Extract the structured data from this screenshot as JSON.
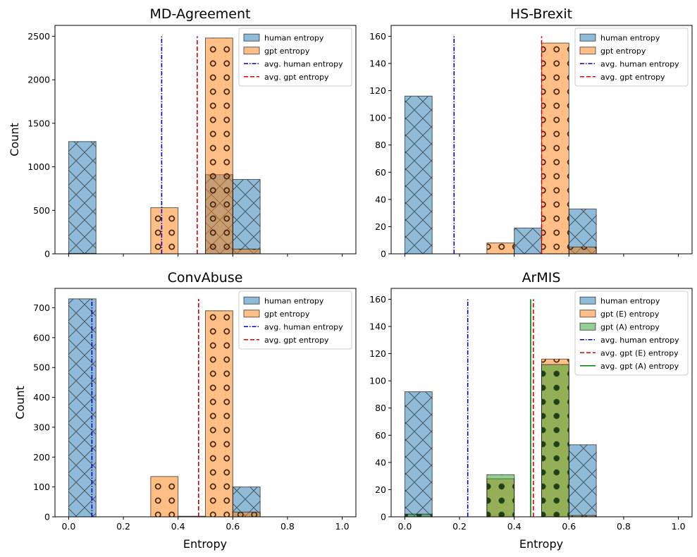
{
  "chart_data": [
    {
      "type": "bar",
      "title": "MD-Agreement",
      "xlabel": "",
      "ylabel": "Count",
      "xlim": [
        -0.05,
        1.05
      ],
      "ylim": [
        0,
        2625
      ],
      "x_ticks": [
        0.0,
        0.2,
        0.4,
        0.6,
        0.8,
        1.0
      ],
      "x_tick_labels": [
        "0.0",
        "0.2",
        "0.4",
        "0.6",
        "0.8",
        "1.0"
      ],
      "y_ticks": [
        0,
        500,
        1000,
        1500,
        2000,
        2500
      ],
      "y_tick_labels": [
        "0",
        "500",
        "1000",
        "1500",
        "2000",
        "2500"
      ],
      "legend_position": "top-right",
      "bin_edges": [
        0.0,
        0.1,
        0.2,
        0.3,
        0.4,
        0.5,
        0.6,
        0.7,
        0.8,
        0.9,
        1.0
      ],
      "series": [
        {
          "name": "human entropy",
          "kind": "hist",
          "color": "#1f77b4",
          "hatch": "x",
          "values": [
            1290,
            0,
            0,
            0,
            0,
            910,
            855,
            0,
            0,
            0
          ]
        },
        {
          "name": "gpt entropy",
          "kind": "hist",
          "color": "#ff7f0e",
          "hatch": "o",
          "values": [
            5,
            0,
            0,
            530,
            0,
            2480,
            55,
            0,
            0,
            0
          ]
        },
        {
          "name": "avg. human entropy",
          "kind": "vline",
          "color": "#0000cc",
          "dash": "dashdot",
          "x": 0.34,
          "height": 2500
        },
        {
          "name": "avg. gpt entropy",
          "kind": "vline",
          "color": "#dd0000",
          "dash": "dashed",
          "x": 0.47,
          "height": 2500
        }
      ]
    },
    {
      "type": "bar",
      "title": "HS-Brexit",
      "xlabel": "",
      "ylabel": "",
      "xlim": [
        -0.05,
        1.05
      ],
      "ylim": [
        0,
        168
      ],
      "x_ticks": [
        0.0,
        0.2,
        0.4,
        0.6,
        0.8,
        1.0
      ],
      "x_tick_labels": [
        "0.0",
        "0.2",
        "0.4",
        "0.6",
        "0.8",
        "1.0"
      ],
      "y_ticks": [
        0,
        20,
        40,
        60,
        80,
        100,
        120,
        140,
        160
      ],
      "y_tick_labels": [
        "0",
        "20",
        "40",
        "60",
        "80",
        "100",
        "120",
        "140",
        "160"
      ],
      "legend_position": "top-right",
      "bin_edges": [
        0.0,
        0.1,
        0.2,
        0.3,
        0.4,
        0.5,
        0.6,
        0.7,
        0.8,
        0.9,
        1.0
      ],
      "series": [
        {
          "name": "human entropy",
          "kind": "hist",
          "color": "#1f77b4",
          "hatch": "x",
          "values": [
            116,
            0,
            0,
            0,
            19,
            0,
            33,
            0,
            0,
            0
          ]
        },
        {
          "name": "gpt entropy",
          "kind": "hist",
          "color": "#ff7f0e",
          "hatch": "o",
          "values": [
            0,
            0,
            0,
            8,
            0,
            155,
            5,
            0,
            0,
            0
          ]
        },
        {
          "name": "avg. human entropy",
          "kind": "vline",
          "color": "#0000cc",
          "dash": "dashdot",
          "x": 0.18,
          "height": 160
        },
        {
          "name": "avg. gpt entropy",
          "kind": "vline",
          "color": "#dd0000",
          "dash": "dashed",
          "x": 0.5,
          "height": 160
        }
      ]
    },
    {
      "type": "bar",
      "title": "ConvAbuse",
      "xlabel": "Entropy",
      "ylabel": "Count",
      "xlim": [
        -0.05,
        1.05
      ],
      "ylim": [
        0,
        765
      ],
      "x_ticks": [
        0.0,
        0.2,
        0.4,
        0.6,
        0.8,
        1.0
      ],
      "x_tick_labels": [
        "0.0",
        "0.2",
        "0.4",
        "0.6",
        "0.8",
        "1.0"
      ],
      "y_ticks": [
        0,
        100,
        200,
        300,
        400,
        500,
        600,
        700
      ],
      "y_tick_labels": [
        "0",
        "100",
        "200",
        "300",
        "400",
        "500",
        "600",
        "700"
      ],
      "legend_position": "top-right",
      "bin_edges": [
        0.0,
        0.1,
        0.2,
        0.3,
        0.4,
        0.5,
        0.6,
        0.7,
        0.8,
        0.9,
        1.0
      ],
      "series": [
        {
          "name": "human entropy",
          "kind": "hist",
          "color": "#1f77b4",
          "hatch": "x",
          "values": [
            730,
            0,
            0,
            0,
            2,
            0,
            100,
            0,
            0,
            0
          ]
        },
        {
          "name": "gpt entropy",
          "kind": "hist",
          "color": "#ff7f0e",
          "hatch": "o",
          "values": [
            0,
            0,
            0,
            135,
            0,
            690,
            16,
            0,
            0,
            0
          ]
        },
        {
          "name": "avg. human entropy",
          "kind": "vline",
          "color": "#0000cc",
          "dash": "dashdot",
          "x": 0.085,
          "height": 730
        },
        {
          "name": "avg. gpt entropy",
          "kind": "vline",
          "color": "#dd0000",
          "dash": "dashed",
          "x": 0.475,
          "height": 730
        }
      ]
    },
    {
      "type": "bar",
      "title": "ArMIS",
      "xlabel": "Entropy",
      "ylabel": "",
      "xlim": [
        -0.05,
        1.05
      ],
      "ylim": [
        0,
        168
      ],
      "x_ticks": [
        0.0,
        0.2,
        0.4,
        0.6,
        0.8,
        1.0
      ],
      "x_tick_labels": [
        "0.0",
        "0.2",
        "0.4",
        "0.6",
        "0.8",
        "1.0"
      ],
      "y_ticks": [
        0,
        20,
        40,
        60,
        80,
        100,
        120,
        140,
        160
      ],
      "y_tick_labels": [
        "0",
        "20",
        "40",
        "60",
        "80",
        "100",
        "120",
        "140",
        "160"
      ],
      "legend_position": "top-right",
      "bin_edges": [
        0.0,
        0.1,
        0.2,
        0.3,
        0.4,
        0.5,
        0.6,
        0.7,
        0.8,
        0.9,
        1.0
      ],
      "series": [
        {
          "name": "human entropy",
          "kind": "hist",
          "color": "#1f77b4",
          "hatch": "x",
          "values": [
            92,
            0,
            0,
            0,
            0,
            0,
            53,
            0,
            0,
            0
          ]
        },
        {
          "name": "gpt (E) entropy",
          "kind": "hist",
          "color": "#ff7f0e",
          "hatch": "o",
          "values": [
            0,
            0,
            0,
            28,
            0,
            116,
            1,
            0,
            0,
            0
          ]
        },
        {
          "name": "gpt (A) entropy",
          "kind": "hist",
          "color": "#2ca02c",
          "hatch": "dot",
          "values": [
            2,
            0,
            0,
            31,
            0,
            112,
            0,
            0,
            0,
            0
          ]
        },
        {
          "name": "avg. human entropy",
          "kind": "vline",
          "color": "#0000cc",
          "dash": "dashdot",
          "x": 0.23,
          "height": 160
        },
        {
          "name": "avg. gpt (E) entropy",
          "kind": "vline",
          "color": "#dd0000",
          "dash": "dashed",
          "x": 0.47,
          "height": 160
        },
        {
          "name": "avg. gpt (A) entropy",
          "kind": "vline",
          "color": "#008000",
          "dash": "solid",
          "x": 0.46,
          "height": 160
        }
      ]
    }
  ]
}
